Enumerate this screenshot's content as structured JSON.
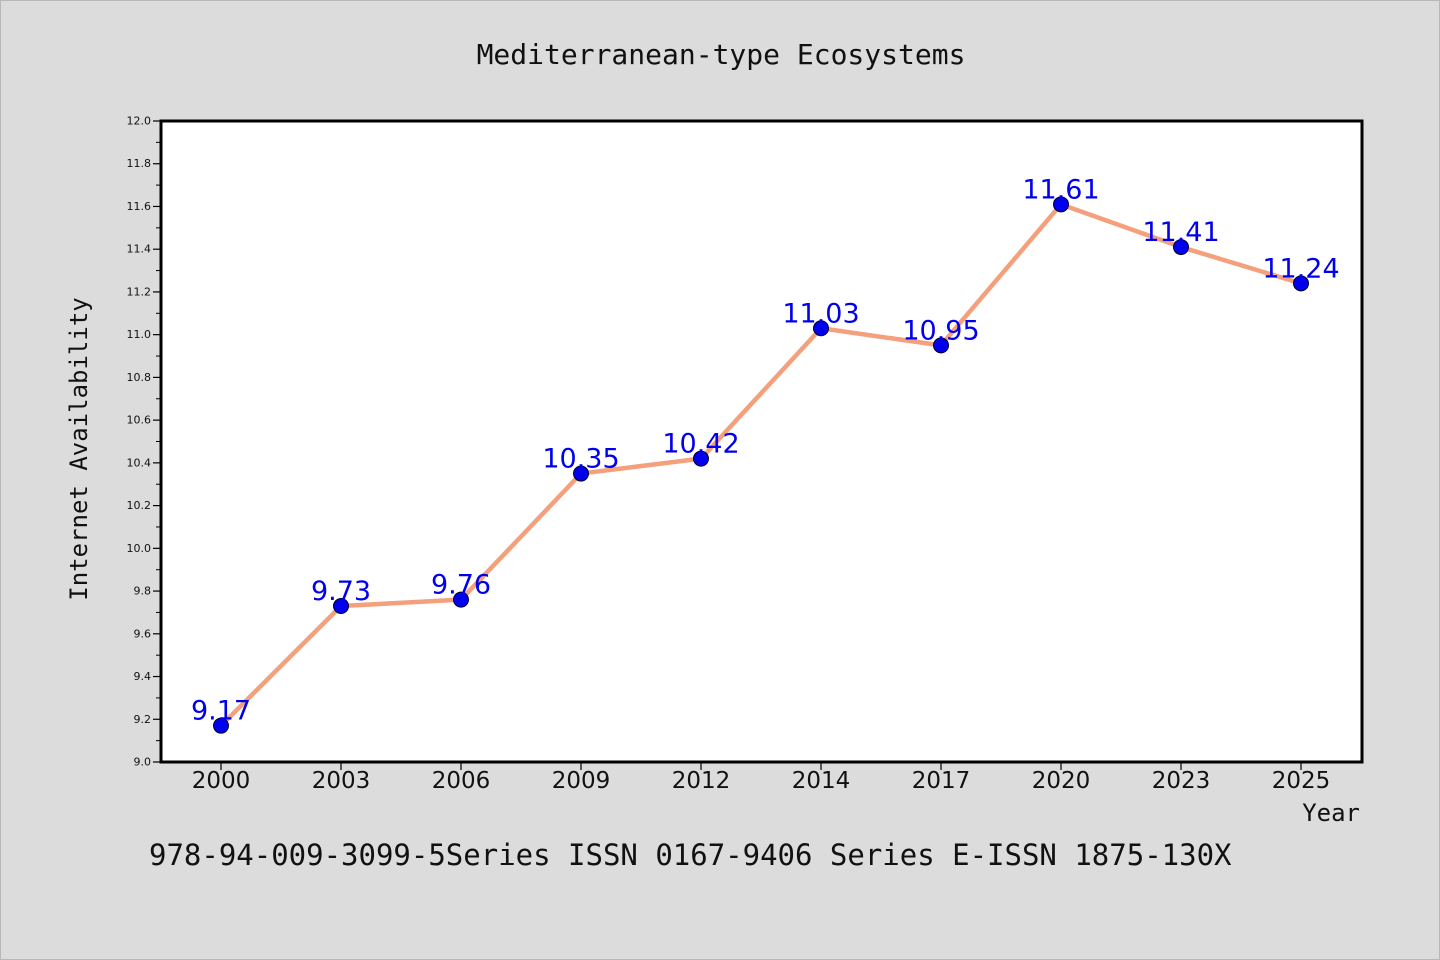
{
  "chart_data": {
    "type": "line",
    "title": "Mediterranean-type Ecosystems",
    "xlabel": "Year",
    "ylabel": "Internet Availability",
    "categories": [
      "2000",
      "2003",
      "2006",
      "2009",
      "2012",
      "2014",
      "2017",
      "2020",
      "2023",
      "2025"
    ],
    "series": [
      {
        "values": [
          9.17,
          9.73,
          9.76,
          10.35,
          10.42,
          11.03,
          10.95,
          11.61,
          11.41,
          11.24
        ],
        "labels": [
          "9.17",
          "9.73",
          "9.76",
          "10.35",
          "10.42",
          "11.03",
          "10.95",
          "11.61",
          "11.41",
          "11.24"
        ]
      }
    ],
    "ylim": [
      9.0,
      12.0
    ],
    "yticks": [
      "9.0",
      "9.2",
      "9.4",
      "9.6",
      "9.8",
      "10.0",
      "10.2",
      "10.4",
      "10.6",
      "10.8",
      "11.0",
      "11.2",
      "11.4",
      "11.6",
      "11.8",
      "12.0"
    ],
    "grid": false,
    "legend": "none",
    "colors": {
      "line": "#f4a07c",
      "marker": "#0000ee",
      "label": "#0000ee",
      "background": "#dcdcdc",
      "plot_background": "#ffffff"
    }
  },
  "footer_text": "978-94-009-3099-5Series ISSN 0167-9406 Series E-ISSN 1875-130X"
}
